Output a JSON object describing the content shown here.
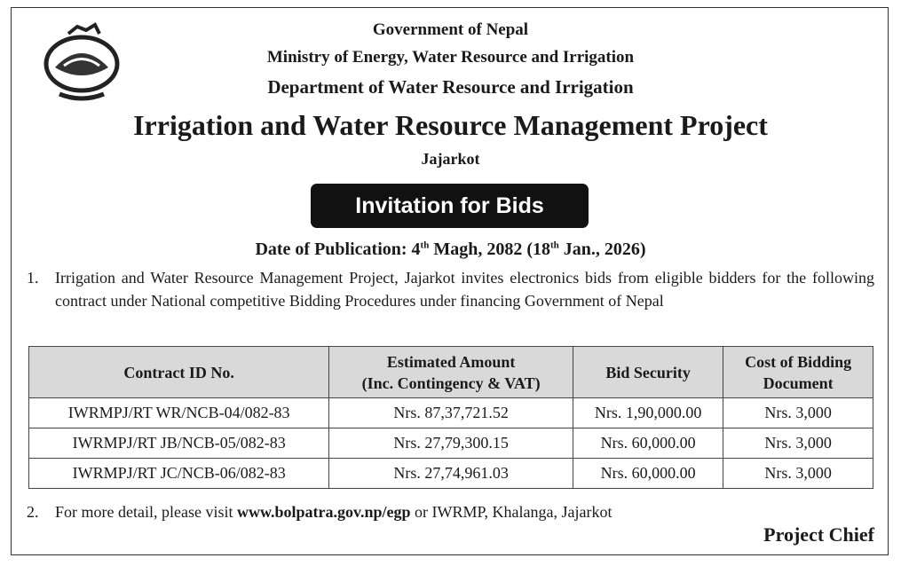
{
  "header": {
    "government": "Government of Nepal",
    "ministry": "Ministry of Energy, Water Resource and Irrigation",
    "department": "Department of Water Resource and Irrigation",
    "title": "Irrigation and Water Resource Management Project",
    "location": "Jajarkot"
  },
  "badge": "Invitation for Bids",
  "publication_date": {
    "parts": [
      "Date of Publication: 4",
      "th",
      " Magh, 2082 (18",
      "th",
      " Jan., 2026)"
    ]
  },
  "paragraph1": {
    "number": "1.",
    "text": "Irrigation and Water Resource Management Project, Jajarkot invites electronics bids from eligible bidders for the following contract under National competitive Bidding Procedures under financing Government of Nepal"
  },
  "table": {
    "headers": [
      [
        "Contract ID No."
      ],
      [
        "Estimated Amount",
        "(Inc. Contingency & VAT)"
      ],
      [
        "Bid Security"
      ],
      [
        "Cost of Bidding",
        "Document"
      ]
    ],
    "rows": [
      [
        "IWRMPJ/RT WR/NCB-04/082-83",
        "Nrs. 87,37,721.52",
        "Nrs. 1,90,000.00",
        "Nrs. 3,000"
      ],
      [
        "IWRMPJ/RT JB/NCB-05/082-83",
        "Nrs. 27,79,300.15",
        "Nrs. 60,000.00",
        "Nrs. 3,000"
      ],
      [
        "IWRMPJ/RT JC/NCB-06/082-83",
        "Nrs. 27,74,961.03",
        "Nrs. 60,000.00",
        "Nrs. 3,000"
      ]
    ]
  },
  "paragraph2": {
    "number": "2.",
    "before": "For more detail, please visit ",
    "link": "www.bolpatra.gov.np/egp",
    "after": " or IWRMP, Khalanga, Jajarkot"
  },
  "signature": "Project Chief"
}
